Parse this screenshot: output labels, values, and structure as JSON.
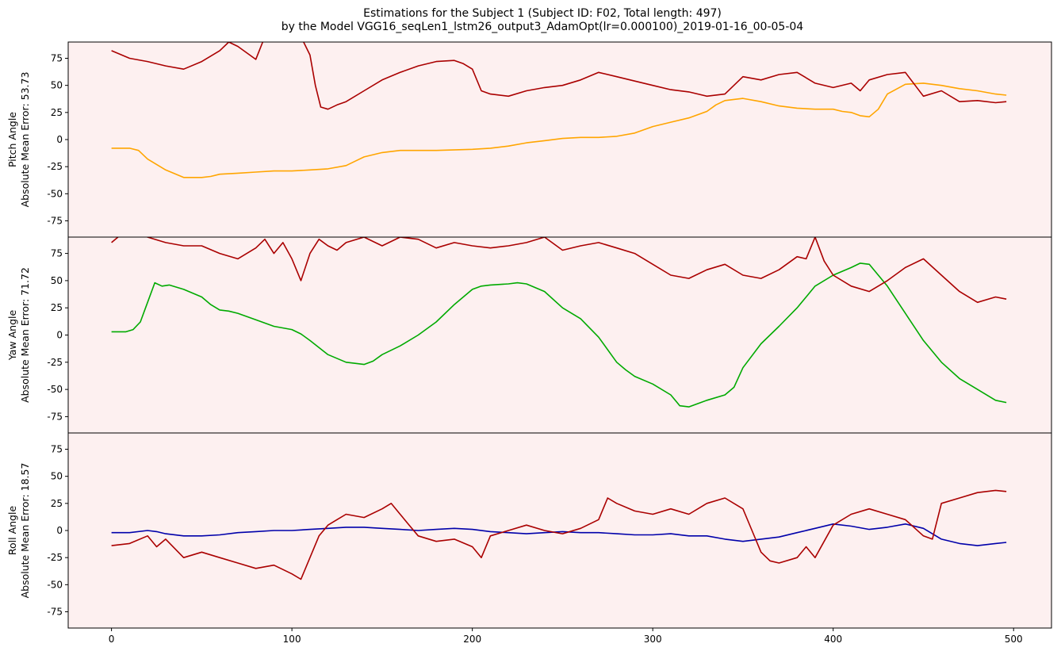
{
  "figure": {
    "title_line1": "Estimations for the Subject 1 (Subject ID: F02, Total length: 497)",
    "title_line2": "by the Model VGG16_seqLen1_lstm26_output3_AdamOpt(lr=0.000100)_2019-01-16_00-05-04",
    "panel_bg": "#fdf0f0",
    "estimate_color": "#aa0000"
  },
  "chart_data": [
    {
      "type": "line",
      "ylabel_line1": "Pitch Angle",
      "ylabel_line2": "Absolute Mean Error: 53.73",
      "ylim": [
        -90,
        90
      ],
      "yticks": [
        -75,
        -50,
        -25,
        0,
        25,
        50,
        75
      ],
      "xlim": [
        -24,
        521
      ],
      "xticks": [],
      "grid": false,
      "series": [
        {
          "role": "ground_truth",
          "color": "#ffa500",
          "x": [
            0,
            10,
            15,
            20,
            25,
            30,
            40,
            50,
            55,
            60,
            70,
            80,
            90,
            100,
            110,
            120,
            130,
            135,
            140,
            150,
            160,
            180,
            200,
            210,
            220,
            230,
            240,
            250,
            260,
            270,
            280,
            290,
            300,
            310,
            320,
            330,
            335,
            340,
            350,
            360,
            370,
            380,
            390,
            400,
            405,
            410,
            415,
            420,
            425,
            430,
            440,
            450,
            460,
            470,
            480,
            490,
            496
          ],
          "values": [
            -8,
            -8,
            -10,
            -18,
            -23,
            -28,
            -35,
            -35,
            -34,
            -32,
            -31,
            -30,
            -29,
            -29,
            -28,
            -27,
            -24,
            -20,
            -16,
            -12,
            -10,
            -10,
            -9,
            -8,
            -6,
            -3,
            -1,
            1,
            2,
            2,
            3,
            6,
            12,
            16,
            20,
            26,
            32,
            36,
            38,
            35,
            31,
            29,
            28,
            28,
            26,
            25,
            22,
            21,
            28,
            42,
            51,
            52,
            50,
            47,
            45,
            42,
            41
          ]
        },
        {
          "role": "estimate",
          "color": "#aa0000",
          "x": [
            0,
            10,
            20,
            30,
            40,
            50,
            60,
            65,
            70,
            80,
            85,
            90,
            95,
            100,
            105,
            110,
            113,
            116,
            120,
            125,
            130,
            140,
            150,
            160,
            170,
            180,
            190,
            195,
            200,
            205,
            210,
            220,
            230,
            240,
            250,
            260,
            270,
            280,
            290,
            300,
            310,
            320,
            330,
            340,
            350,
            360,
            370,
            380,
            390,
            400,
            410,
            415,
            420,
            430,
            440,
            450,
            460,
            470,
            480,
            490,
            496
          ],
          "values": [
            82,
            75,
            72,
            68,
            65,
            72,
            82,
            90,
            86,
            74,
            95,
            94,
            92,
            96,
            95,
            78,
            50,
            30,
            28,
            32,
            35,
            45,
            55,
            62,
            68,
            72,
            73,
            70,
            65,
            45,
            42,
            40,
            45,
            48,
            50,
            55,
            62,
            58,
            54,
            50,
            46,
            44,
            40,
            42,
            58,
            55,
            60,
            62,
            52,
            48,
            52,
            45,
            55,
            60,
            62,
            40,
            45,
            35,
            36,
            34,
            35
          ]
        }
      ]
    },
    {
      "type": "line",
      "ylabel_line1": "Yaw Angle",
      "ylabel_line2": "Absolute Mean Error: 71.72",
      "ylim": [
        -90,
        90
      ],
      "yticks": [
        -75,
        -50,
        -25,
        0,
        25,
        50,
        75
      ],
      "xlim": [
        -24,
        521
      ],
      "xticks": [],
      "grid": false,
      "series": [
        {
          "role": "ground_truth",
          "color": "#00aa00",
          "x": [
            0,
            8,
            12,
            16,
            20,
            24,
            28,
            32,
            40,
            50,
            55,
            60,
            65,
            70,
            80,
            90,
            100,
            105,
            110,
            120,
            130,
            135,
            140,
            145,
            150,
            160,
            170,
            180,
            190,
            200,
            205,
            210,
            220,
            225,
            230,
            240,
            250,
            260,
            270,
            280,
            285,
            290,
            300,
            310,
            315,
            320,
            330,
            340,
            345,
            350,
            360,
            370,
            380,
            385,
            390,
            400,
            410,
            415,
            420,
            430,
            440,
            450,
            460,
            470,
            480,
            490,
            496
          ],
          "values": [
            3,
            3,
            5,
            12,
            30,
            48,
            45,
            46,
            42,
            35,
            28,
            23,
            22,
            20,
            14,
            8,
            5,
            1,
            -5,
            -18,
            -25,
            -26,
            -27,
            -24,
            -18,
            -10,
            0,
            12,
            28,
            42,
            45,
            46,
            47,
            48,
            47,
            40,
            25,
            15,
            -2,
            -25,
            -32,
            -38,
            -45,
            -55,
            -65,
            -66,
            -60,
            -55,
            -48,
            -30,
            -8,
            8,
            25,
            35,
            45,
            55,
            62,
            66,
            65,
            45,
            20,
            -5,
            -25,
            -40,
            -50,
            -60,
            -62
          ]
        },
        {
          "role": "estimate",
          "color": "#aa0000",
          "x": [
            0,
            5,
            10,
            20,
            30,
            40,
            50,
            60,
            70,
            80,
            85,
            90,
            95,
            100,
            105,
            110,
            115,
            120,
            125,
            130,
            140,
            150,
            160,
            170,
            180,
            190,
            200,
            210,
            220,
            230,
            240,
            250,
            260,
            270,
            280,
            290,
            300,
            310,
            320,
            330,
            340,
            350,
            360,
            370,
            380,
            385,
            390,
            395,
            400,
            410,
            420,
            430,
            440,
            450,
            460,
            470,
            480,
            490,
            496
          ],
          "values": [
            85,
            92,
            95,
            90,
            85,
            82,
            82,
            75,
            70,
            80,
            88,
            75,
            85,
            70,
            50,
            75,
            88,
            82,
            78,
            85,
            90,
            82,
            90,
            88,
            80,
            85,
            82,
            80,
            82,
            85,
            90,
            78,
            82,
            85,
            80,
            75,
            65,
            55,
            52,
            60,
            65,
            55,
            52,
            60,
            72,
            70,
            90,
            68,
            55,
            45,
            40,
            50,
            62,
            70,
            55,
            40,
            30,
            35,
            33
          ]
        }
      ]
    },
    {
      "type": "line",
      "ylabel_line1": "Roll Angle",
      "ylabel_line2": "Absolute Mean Error: 18.57",
      "ylim": [
        -90,
        90
      ],
      "yticks": [
        -75,
        -50,
        -25,
        0,
        25,
        50,
        75
      ],
      "xlim": [
        -24,
        521
      ],
      "xticks": [
        0,
        100,
        200,
        300,
        400,
        500
      ],
      "grid": false,
      "series": [
        {
          "role": "ground_truth",
          "color": "#0000aa",
          "x": [
            0,
            10,
            20,
            25,
            30,
            40,
            50,
            60,
            70,
            80,
            90,
            100,
            110,
            120,
            130,
            140,
            150,
            160,
            170,
            180,
            190,
            200,
            210,
            220,
            230,
            240,
            250,
            260,
            270,
            280,
            290,
            300,
            310,
            320,
            330,
            340,
            350,
            360,
            370,
            380,
            390,
            400,
            410,
            420,
            430,
            440,
            450,
            460,
            470,
            480,
            490,
            496
          ],
          "values": [
            -2,
            -2,
            0,
            -1,
            -3,
            -5,
            -5,
            -4,
            -2,
            -1,
            0,
            0,
            1,
            2,
            3,
            3,
            2,
            1,
            0,
            1,
            2,
            1,
            -1,
            -2,
            -3,
            -2,
            -1,
            -2,
            -2,
            -3,
            -4,
            -4,
            -3,
            -5,
            -5,
            -8,
            -10,
            -8,
            -6,
            -2,
            2,
            6,
            4,
            1,
            3,
            6,
            2,
            -8,
            -12,
            -14,
            -12,
            -11
          ]
        },
        {
          "role": "estimate",
          "color": "#aa0000",
          "x": [
            0,
            10,
            20,
            25,
            30,
            40,
            50,
            60,
            70,
            80,
            90,
            100,
            105,
            110,
            115,
            120,
            125,
            130,
            140,
            150,
            155,
            160,
            165,
            170,
            180,
            190,
            200,
            205,
            210,
            220,
            230,
            240,
            250,
            260,
            270,
            275,
            280,
            290,
            300,
            310,
            320,
            330,
            340,
            350,
            355,
            360,
            365,
            370,
            380,
            385,
            390,
            400,
            410,
            420,
            430,
            440,
            450,
            455,
            460,
            470,
            480,
            490,
            496
          ],
          "values": [
            -14,
            -12,
            -5,
            -15,
            -8,
            -25,
            -20,
            -25,
            -30,
            -35,
            -32,
            -40,
            -45,
            -25,
            -5,
            5,
            10,
            15,
            12,
            20,
            25,
            15,
            5,
            -5,
            -10,
            -8,
            -15,
            -25,
            -5,
            0,
            5,
            0,
            -3,
            2,
            10,
            30,
            25,
            18,
            15,
            20,
            15,
            25,
            30,
            20,
            0,
            -20,
            -28,
            -30,
            -25,
            -15,
            -25,
            5,
            15,
            20,
            15,
            10,
            -5,
            -8,
            25,
            30,
            35,
            37,
            36
          ]
        }
      ]
    }
  ]
}
